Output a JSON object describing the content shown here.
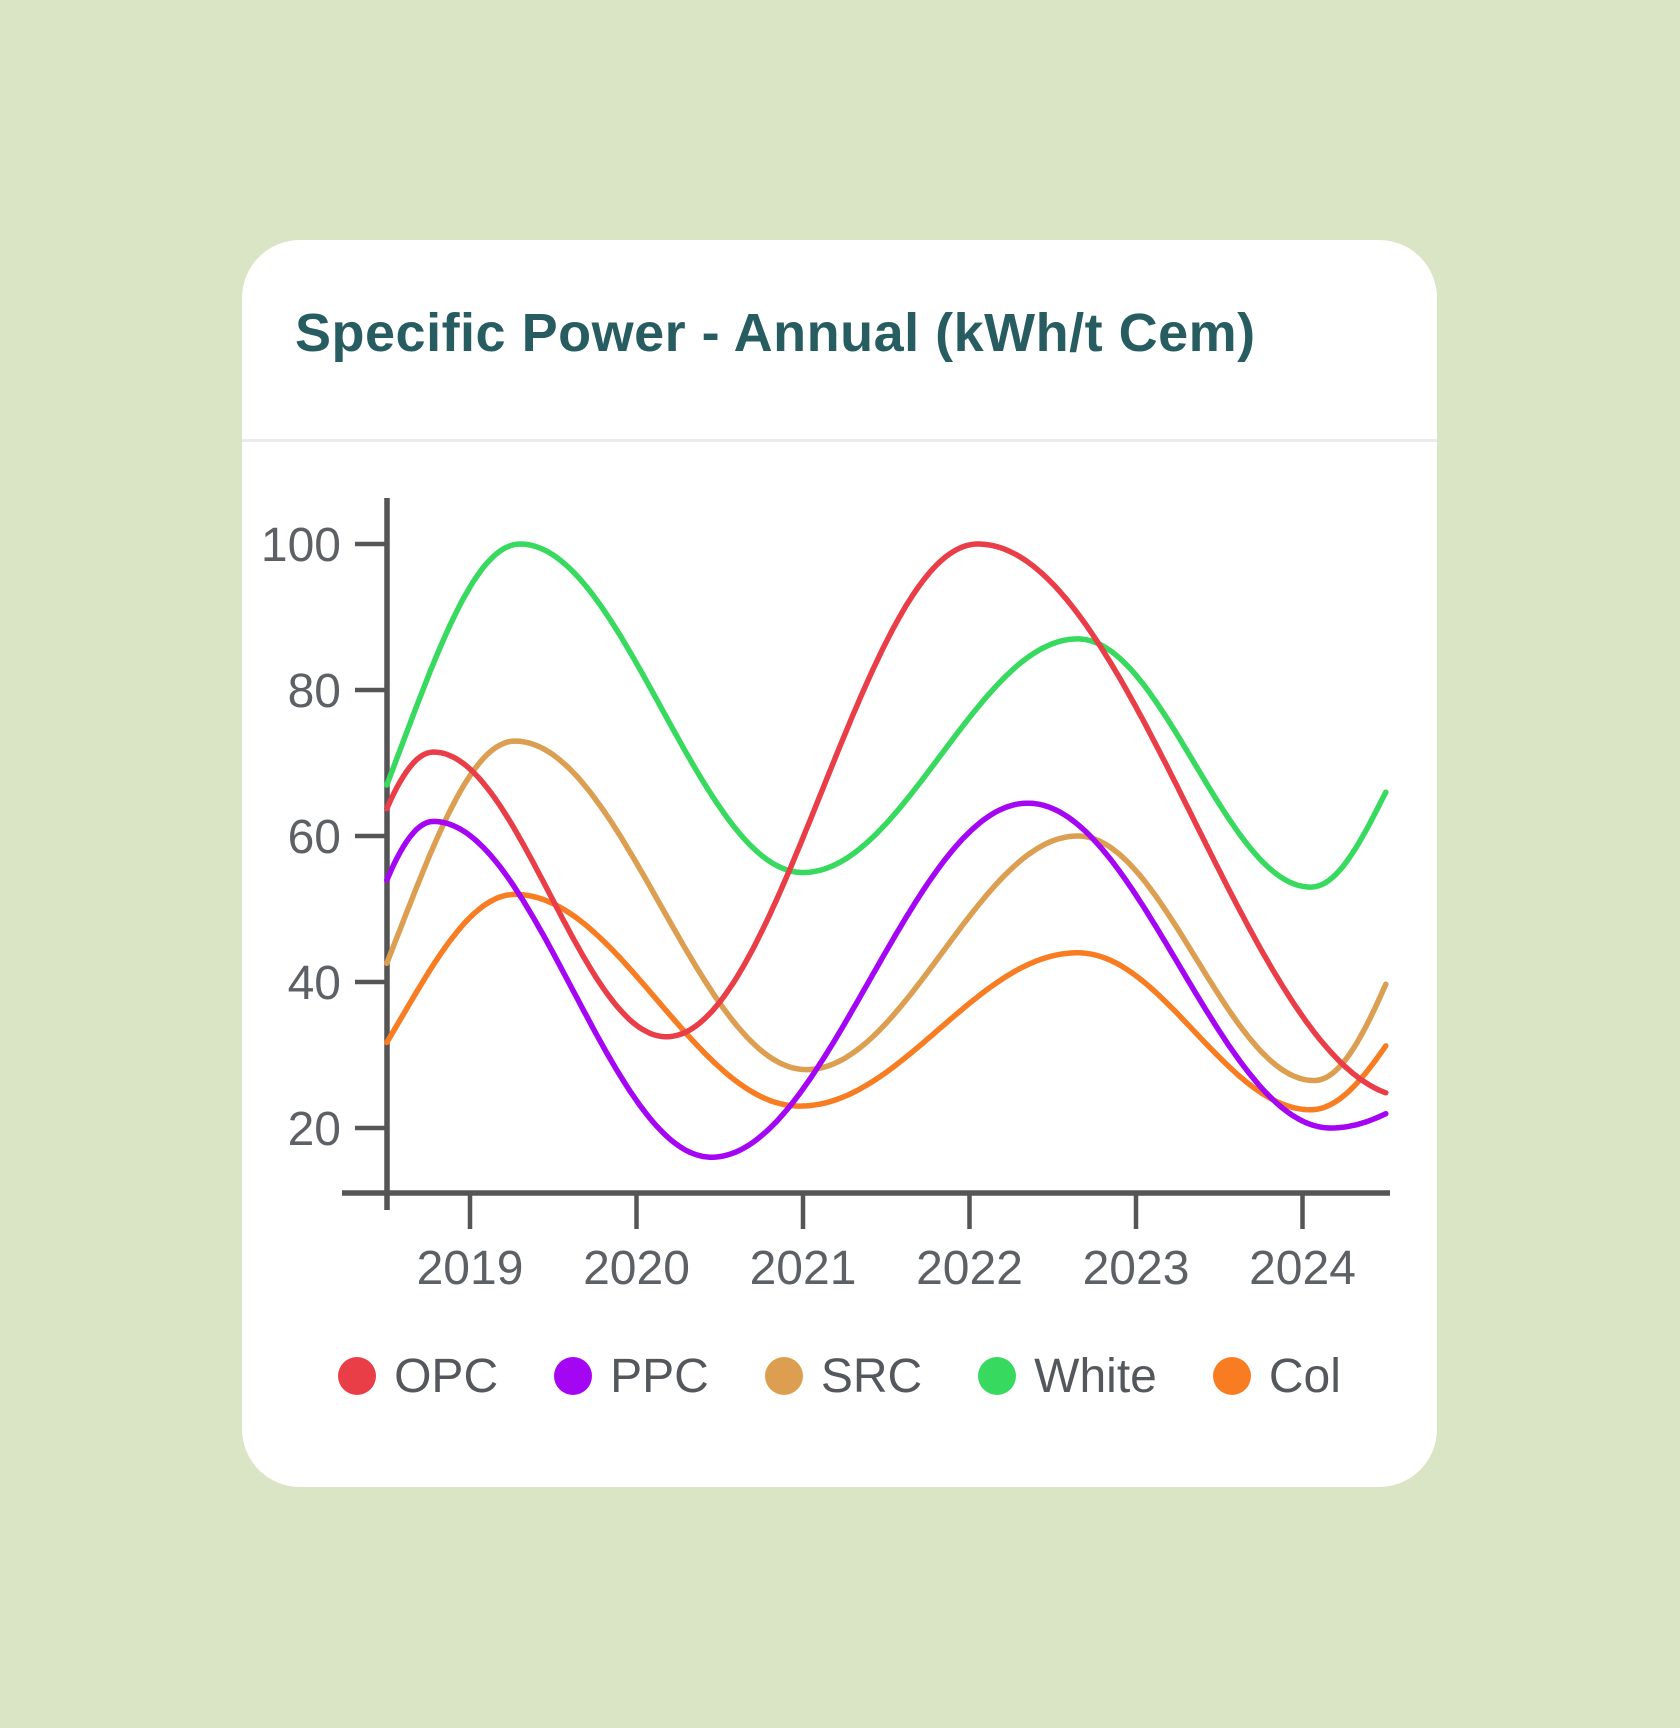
{
  "card": {
    "title": "Specific Power - Annual (kWh/t Cem)"
  },
  "chart_data": {
    "type": "line",
    "title": "Specific Power - Annual (kWh/t Cem)",
    "x_ticks": [
      "2019",
      "2020",
      "2021",
      "2022",
      "2023",
      "2024"
    ],
    "y_ticks": [
      "100",
      "80",
      "60",
      "40",
      "20"
    ],
    "x_range": [
      2018.5,
      2024.5
    ],
    "ylim": [
      11,
      106
    ],
    "grid": false,
    "legend_position": "bottom",
    "interpolation": "smooth cosine through extrema; anchor points outside x_range are virtual and clipped",
    "series": [
      {
        "name": "OPC",
        "color": "#e93e47",
        "extrema": [
          [
            2017.7,
            22
          ],
          [
            2018.78,
            71.5
          ],
          [
            2020.18,
            32.5
          ],
          [
            2022.05,
            100
          ],
          [
            2024.65,
            24.2
          ]
        ]
      },
      {
        "name": "PPC",
        "color": "#a405f2",
        "extrema": [
          [
            2017.75,
            15
          ],
          [
            2018.78,
            62
          ],
          [
            2020.45,
            16
          ],
          [
            2022.35,
            64.5
          ],
          [
            2024.17,
            20
          ],
          [
            2025.3,
            30
          ]
        ]
      },
      {
        "name": "SRC",
        "color": "#dc9e50",
        "extrema": [
          [
            2017.9,
            22
          ],
          [
            2019.27,
            73
          ],
          [
            2021.02,
            28
          ],
          [
            2022.65,
            60
          ],
          [
            2024.07,
            26.5
          ],
          [
            2025.1,
            62
          ]
        ]
      },
      {
        "name": "White",
        "color": "#38d95f",
        "extrema": [
          [
            2017.9,
            46
          ],
          [
            2019.3,
            100
          ],
          [
            2021.0,
            55
          ],
          [
            2022.65,
            87
          ],
          [
            2024.05,
            53
          ],
          [
            2024.95,
            79
          ]
        ]
      },
      {
        "name": "Col",
        "color": "#f87d22",
        "extrema": [
          [
            2017.9,
            18
          ],
          [
            2019.27,
            52
          ],
          [
            2020.98,
            23
          ],
          [
            2022.65,
            44
          ],
          [
            2024.05,
            22.5
          ],
          [
            2025.1,
            45
          ]
        ]
      }
    ],
    "z_order_bottom_to_top": [
      "White",
      "Col",
      "SRC",
      "PPC",
      "OPC"
    ]
  },
  "colors": {
    "background": "#d9e5c4",
    "card": "#ffffff",
    "title": "#275d61",
    "axis": "#555555",
    "tick_label": "#5d6165",
    "legend_label": "#54585c",
    "divider": "#ebebee"
  }
}
